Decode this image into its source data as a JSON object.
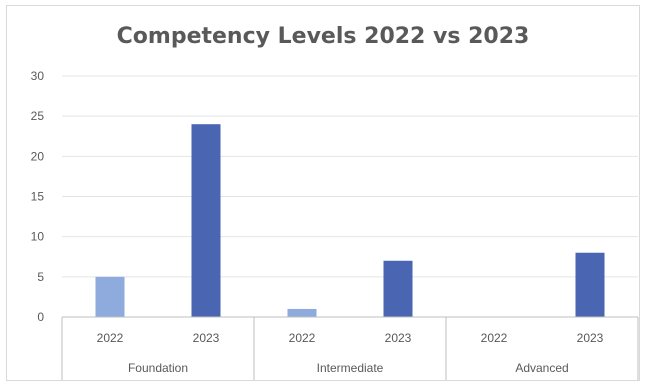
{
  "chart_data": {
    "type": "bar",
    "title": "Competency Levels 2022 vs 2023",
    "xlabel": "",
    "ylabel": "",
    "ylim": [
      0,
      30
    ],
    "yticks": [
      0,
      5,
      10,
      15,
      20,
      25,
      30
    ],
    "grid": true,
    "groups": [
      {
        "name": "Foundation",
        "categories": [
          {
            "label": "2022",
            "value": 5
          },
          {
            "label": "2023",
            "value": 24
          }
        ]
      },
      {
        "name": "Intermediate",
        "categories": [
          {
            "label": "2022",
            "value": 1
          },
          {
            "label": "2023",
            "value": 7
          }
        ]
      },
      {
        "name": "Advanced",
        "categories": [
          {
            "label": "2022",
            "value": 0
          },
          {
            "label": "2023",
            "value": 8
          }
        ]
      }
    ],
    "colors": {
      "2022": "#8faadc",
      "2023": "#4a65b1",
      "grid": "#e4e4e4",
      "axis": "#bfbfbf",
      "text": "#595959"
    }
  }
}
